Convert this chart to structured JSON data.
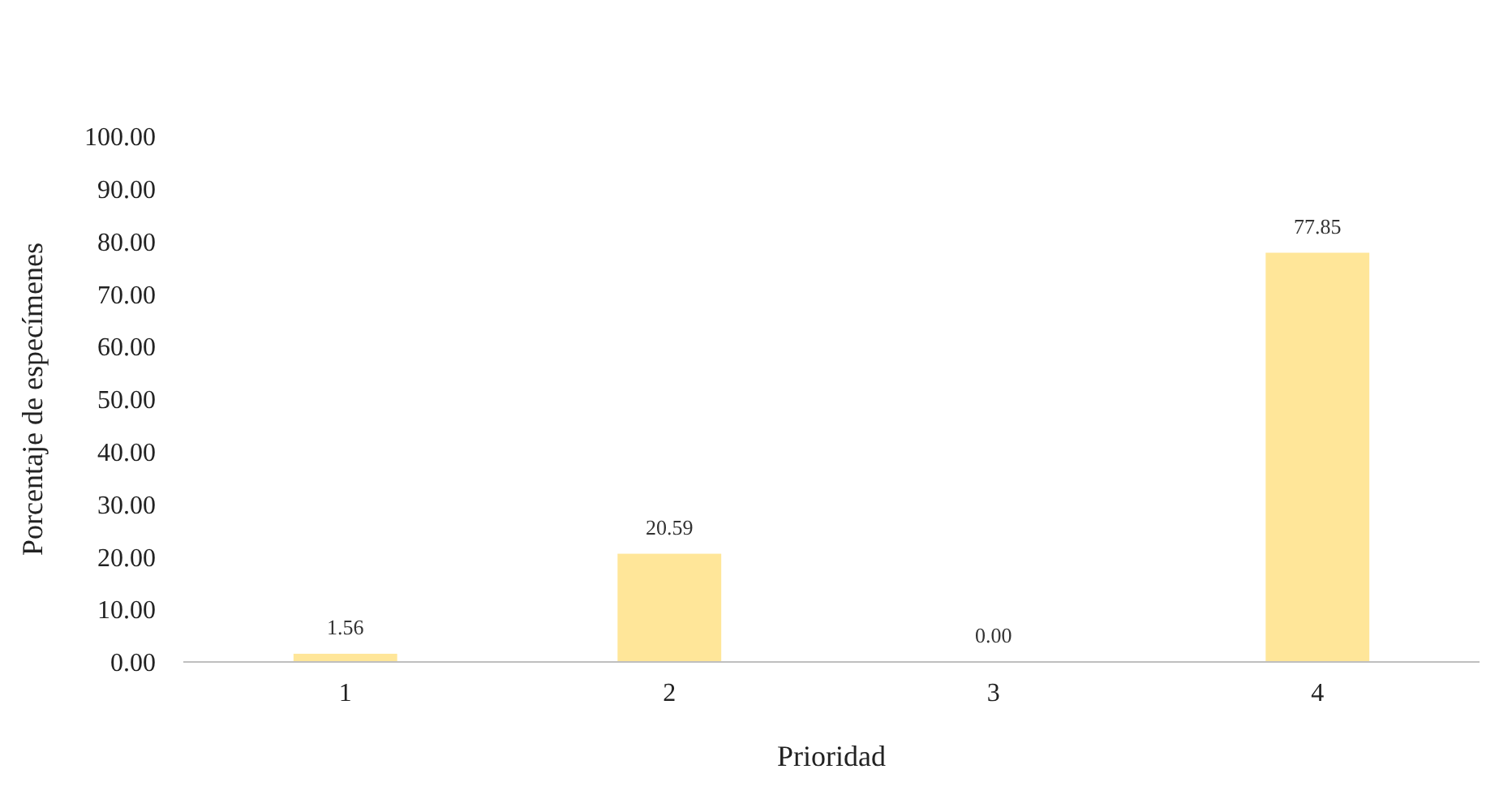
{
  "chart_data": {
    "type": "bar",
    "xlabel": "Prioridad",
    "ylabel": "Porcentaje de especímenes",
    "categories": [
      "1",
      "2",
      "3",
      "4"
    ],
    "values": [
      1.56,
      20.59,
      0,
      77.85
    ],
    "value_labels": [
      "1.56",
      "20.59",
      "0.00",
      "77.85"
    ],
    "color": "#ffe699",
    "ylim": [
      0,
      100
    ],
    "yticks": [
      {
        "value": 0,
        "label": "0.00"
      },
      {
        "value": 10,
        "label": "10.00"
      },
      {
        "value": 20,
        "label": "20.00"
      },
      {
        "value": 30,
        "label": "30.00"
      },
      {
        "value": 40,
        "label": "40.00"
      },
      {
        "value": 50,
        "label": "50.00"
      },
      {
        "value": 60,
        "label": "60.00"
      },
      {
        "value": 70,
        "label": "70.00"
      },
      {
        "value": 80,
        "label": "80.00"
      },
      {
        "value": 90,
        "label": "90.00"
      },
      {
        "value": 100,
        "label": "100.00"
      }
    ],
    "grid": false
  }
}
